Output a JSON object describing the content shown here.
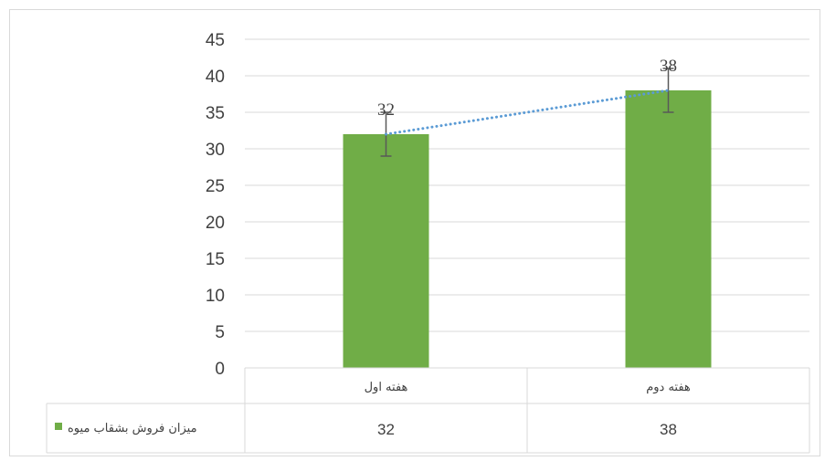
{
  "chart_data": {
    "type": "bar",
    "categories": [
      "هفته اول",
      "هفته دوم"
    ],
    "series": [
      {
        "name": "میزان فروش بشقاب میوه",
        "values": [
          32,
          38
        ],
        "color": "#70ad47"
      }
    ],
    "data_labels": [
      "32",
      "38"
    ],
    "error_bars": {
      "minus": [
        3,
        3
      ],
      "plus": [
        3,
        3
      ],
      "color": "#595959"
    },
    "trendline": {
      "type": "linear",
      "style": "dotted",
      "color": "#5b9bd5"
    },
    "ylim": [
      0,
      45
    ],
    "yticks": [
      "0",
      "5",
      "10",
      "15",
      "20",
      "25",
      "30",
      "35",
      "40",
      "45"
    ],
    "ytick_values": [
      0,
      5,
      10,
      15,
      20,
      25,
      30,
      35,
      40,
      45
    ],
    "grid": true,
    "data_table": true,
    "legend_in_table": true
  }
}
